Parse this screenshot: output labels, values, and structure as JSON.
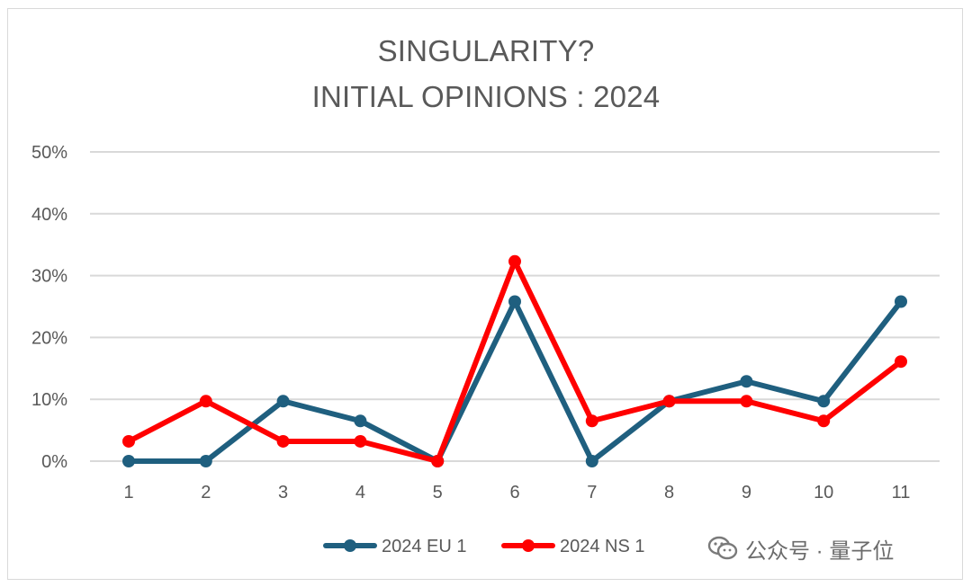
{
  "chart_data": {
    "type": "line",
    "title": "SINGULARITY?",
    "subtitle": "INITIAL OPINIONS : 2024",
    "xlabel": "",
    "ylabel": "",
    "categories": [
      "1",
      "2",
      "3",
      "4",
      "5",
      "6",
      "7",
      "8",
      "9",
      "10",
      "11"
    ],
    "ylim": [
      0,
      0.5
    ],
    "yticks": [
      "0%",
      "10%",
      "20%",
      "30%",
      "40%",
      "50%"
    ],
    "grid": true,
    "legend": "bottom",
    "series": [
      {
        "name": "2024 EU 1",
        "color": "#1f5f7f",
        "values": [
          0.0,
          0.0,
          0.097,
          0.065,
          0.0,
          0.258,
          0.0,
          0.097,
          0.129,
          0.097,
          0.258
        ]
      },
      {
        "name": "2024 NS 1",
        "color": "#ff0000",
        "values": [
          0.032,
          0.097,
          0.032,
          0.032,
          0.0,
          0.323,
          0.065,
          0.097,
          0.097,
          0.065,
          0.161
        ]
      }
    ]
  },
  "watermark": {
    "text": "公众号 · 量子位",
    "icon": "wechat-icon"
  }
}
